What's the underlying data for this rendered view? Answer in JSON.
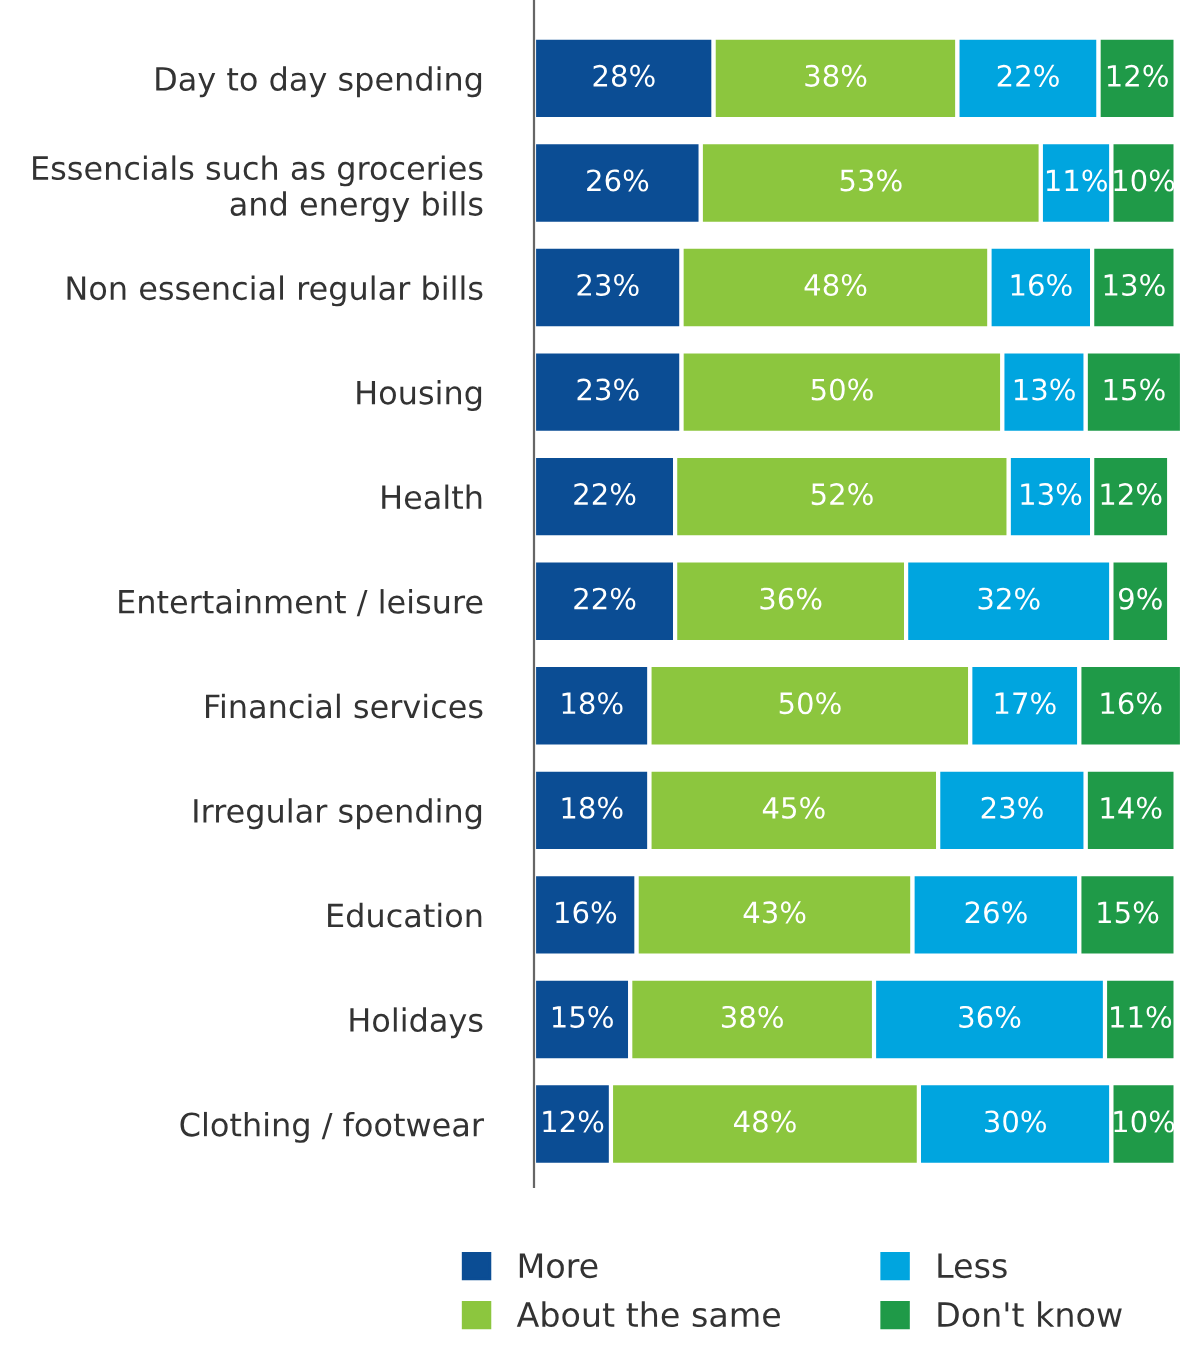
{
  "chart_data": {
    "type": "bar",
    "orientation": "horizontal",
    "stacked": true,
    "xlim": [
      0,
      101
    ],
    "tick_labels": "y",
    "legend": "bottom",
    "grid": false,
    "categories": [
      "Day to day spending",
      "Essencials such as groceries\nand energy bills",
      "Non essencial regular bills",
      "Housing",
      "Health",
      "Entertainment / leisure",
      "Financial services",
      "Irregular spending",
      "Education",
      "Holidays",
      "Clothing / footwear"
    ],
    "series": [
      {
        "name": "More",
        "color": "#0b4d94",
        "values": [
          28,
          26,
          23,
          23,
          22,
          22,
          18,
          18,
          16,
          15,
          12
        ],
        "value_labels": [
          "28%",
          "26%",
          "23%",
          "23%",
          "22%",
          "22%",
          "18%",
          "18%",
          "16%",
          "15%",
          "12%"
        ]
      },
      {
        "name": "About the same",
        "color": "#8cc63e",
        "values": [
          38,
          53,
          48,
          50,
          52,
          36,
          50,
          45,
          43,
          38,
          48
        ],
        "value_labels": [
          "38%",
          "53%",
          "48%",
          "50%",
          "52%",
          "36%",
          "50%",
          "45%",
          "43%",
          "38%",
          "48%"
        ]
      },
      {
        "name": "Less",
        "color": "#00a5df",
        "values": [
          22,
          11,
          16,
          13,
          13,
          32,
          17,
          23,
          26,
          36,
          30
        ],
        "value_labels": [
          "22%",
          "11%",
          "16%",
          "13%",
          "13%",
          "32%",
          "17%",
          "23%",
          "26%",
          "36%",
          "30%"
        ]
      },
      {
        "name": "Don't know",
        "color": "#1f9a48",
        "values": [
          12,
          10,
          13,
          15,
          12,
          9,
          16,
          14,
          15,
          11,
          10
        ],
        "value_labels": [
          "12%",
          "10%",
          "13%",
          "15%",
          "12%",
          "9%",
          "16%",
          "14%",
          "15%",
          "11%",
          "10%"
        ]
      }
    ]
  }
}
